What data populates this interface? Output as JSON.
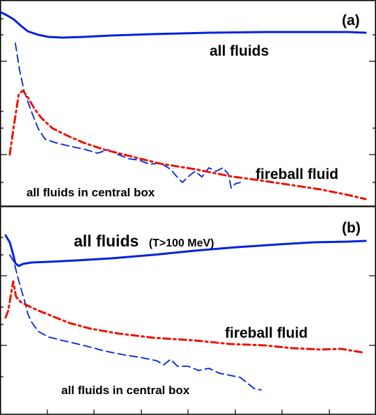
{
  "chart_data": [
    {
      "type": "line",
      "panel_label": "(a)",
      "title": "",
      "xlabel": "",
      "ylabel": "",
      "xlim": [
        0,
        540
      ],
      "ylim": [
        0,
        296
      ],
      "y_scale": "log",
      "grid": false,
      "labels": {
        "all": "all fluids",
        "fireball": "fireball fluid",
        "central": "all fluids in central box"
      },
      "series": [
        {
          "key": "all",
          "color": "#0022dd",
          "style": "solid",
          "points": [
            [
              2,
              18
            ],
            [
              10,
              22
            ],
            [
              20,
              28
            ],
            [
              30,
              37
            ],
            [
              40,
              45
            ],
            [
              55,
              50
            ],
            [
              70,
              53
            ],
            [
              90,
              54
            ],
            [
              120,
              53
            ],
            [
              160,
              51
            ],
            [
              220,
              49
            ],
            [
              300,
              47
            ],
            [
              380,
              46
            ],
            [
              450,
              46
            ],
            [
              500,
              46
            ],
            [
              525,
              47
            ]
          ]
        },
        {
          "key": "central",
          "color": "#0022dd",
          "style": "dashed",
          "points": [
            [
              22,
              62
            ],
            [
              28,
              100
            ],
            [
              35,
              132
            ],
            [
              45,
              160
            ],
            [
              55,
              185
            ],
            [
              65,
              200
            ],
            [
              80,
              205
            ],
            [
              100,
              210
            ],
            [
              120,
              214
            ],
            [
              140,
              220
            ],
            [
              155,
              215
            ],
            [
              170,
              222
            ],
            [
              185,
              228
            ],
            [
              200,
              230
            ],
            [
              215,
              236
            ],
            [
              230,
              234
            ],
            [
              245,
              243
            ],
            [
              255,
              255
            ],
            [
              262,
              262
            ],
            [
              270,
              254
            ],
            [
              280,
              246
            ],
            [
              290,
              254
            ],
            [
              300,
              241
            ],
            [
              310,
              246
            ],
            [
              320,
              241
            ],
            [
              328,
              250
            ],
            [
              332,
              270
            ],
            [
              338,
              264
            ],
            [
              345,
              262
            ]
          ]
        },
        {
          "key": "fireball",
          "color": "#ee1100",
          "style": "dashdot",
          "points": [
            [
              14,
              222
            ],
            [
              20,
              180
            ],
            [
              27,
              135
            ],
            [
              33,
              130
            ],
            [
              40,
              140
            ],
            [
              50,
              157
            ],
            [
              60,
              170
            ],
            [
              75,
              184
            ],
            [
              95,
              194
            ],
            [
              120,
              205
            ],
            [
              150,
              215
            ],
            [
              190,
              225
            ],
            [
              230,
              235
            ],
            [
              280,
              243
            ],
            [
              330,
              253
            ],
            [
              380,
              260
            ],
            [
              420,
              266
            ],
            [
              460,
              272
            ],
            [
              500,
              280
            ],
            [
              525,
              286
            ]
          ]
        }
      ]
    },
    {
      "type": "line",
      "panel_label": "(b)",
      "title": "",
      "xlabel": "",
      "ylabel": "",
      "xlim": [
        0,
        540
      ],
      "ylim": [
        0,
        296
      ],
      "y_scale": "log",
      "grid": false,
      "labels": {
        "all": "all fluids",
        "all_note": "(T>100 MeV)",
        "fireball": "fireball fluid",
        "central": "all fluids in central box"
      },
      "series": [
        {
          "key": "all",
          "color": "#0022dd",
          "style": "solid",
          "points": [
            [
              8,
              42
            ],
            [
              14,
              52
            ],
            [
              18,
              66
            ],
            [
              22,
              82
            ],
            [
              27,
              86
            ],
            [
              33,
              83
            ],
            [
              45,
              81
            ],
            [
              70,
              80
            ],
            [
              110,
              78
            ],
            [
              160,
              75
            ],
            [
              220,
              70
            ],
            [
              280,
              64
            ],
            [
              340,
              59
            ],
            [
              400,
              55
            ],
            [
              450,
              52
            ],
            [
              500,
              51
            ],
            [
              525,
              50
            ]
          ]
        },
        {
          "key": "central",
          "color": "#0022dd",
          "style": "dashed",
          "points": [
            [
              14,
              70
            ],
            [
              20,
              80
            ],
            [
              25,
              100
            ],
            [
              30,
              118
            ],
            [
              35,
              135
            ],
            [
              40,
              155
            ],
            [
              45,
              166
            ],
            [
              55,
              180
            ],
            [
              70,
              188
            ],
            [
              90,
              193
            ],
            [
              120,
              200
            ],
            [
              150,
              208
            ],
            [
              180,
              214
            ],
            [
              200,
              217
            ],
            [
              225,
              222
            ],
            [
              235,
              228
            ],
            [
              245,
              220
            ],
            [
              255,
              230
            ],
            [
              270,
              230
            ],
            [
              285,
              236
            ],
            [
              300,
              233
            ],
            [
              315,
              240
            ],
            [
              330,
              243
            ],
            [
              345,
              246
            ],
            [
              355,
              254
            ],
            [
              365,
              262
            ],
            [
              375,
              264
            ]
          ]
        },
        {
          "key": "fireball",
          "color": "#ee1100",
          "style": "dashdot",
          "points": [
            [
              8,
              160
            ],
            [
              12,
              150
            ],
            [
              16,
              125
            ],
            [
              19,
              108
            ],
            [
              23,
              130
            ],
            [
              30,
              138
            ],
            [
              40,
              143
            ],
            [
              55,
              150
            ],
            [
              75,
              158
            ],
            [
              100,
              168
            ],
            [
              130,
              176
            ],
            [
              170,
              183
            ],
            [
              220,
              189
            ],
            [
              280,
              193
            ],
            [
              330,
              198
            ],
            [
              380,
              200
            ],
            [
              420,
              204
            ],
            [
              460,
              206
            ],
            [
              490,
              205
            ],
            [
              520,
              210
            ]
          ]
        }
      ]
    }
  ]
}
